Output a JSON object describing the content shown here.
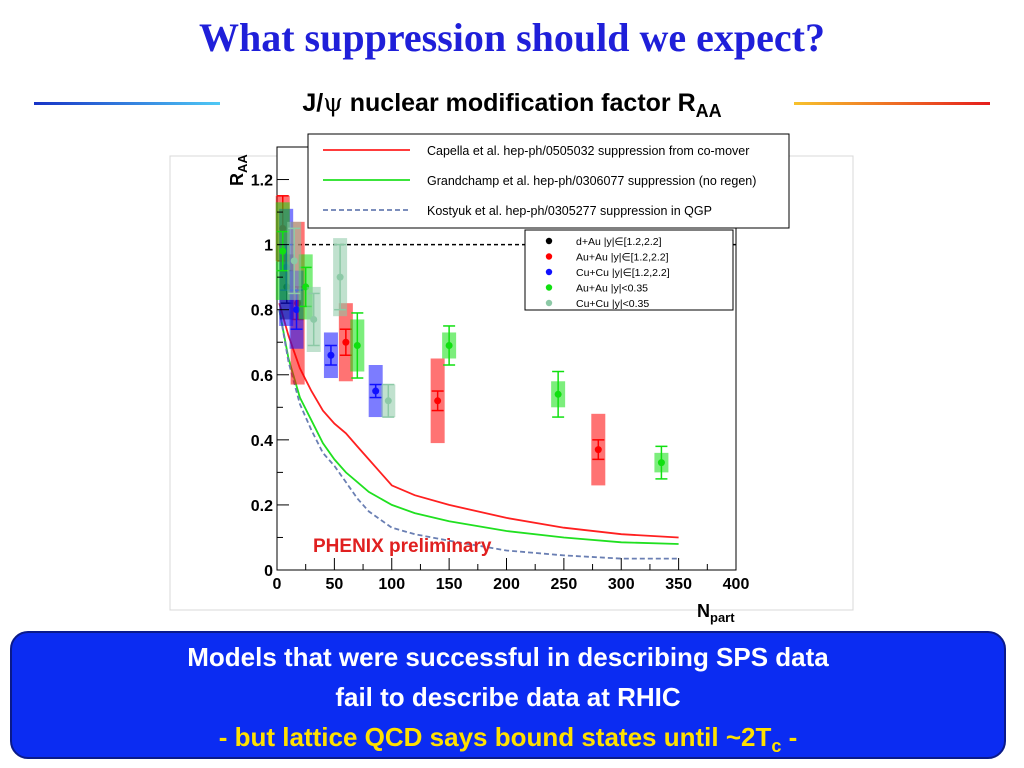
{
  "slide": {
    "title": "What suppression should we expect?",
    "chart_title_prefix": "J/",
    "chart_title_psi": "ψ",
    "chart_title_main": " nuclear modification factor R",
    "chart_title_sub": "AA",
    "conclusion_line1": "Models that were successful in describing SPS data",
    "conclusion_line2": "fail to describe data at RHIC",
    "conclusion_line3_pre": "- but lattice QCD says bound states until ~2T",
    "conclusion_line3_sub": "c",
    "conclusion_line3_post": " -",
    "colors": {
      "title": "#1f1fd9",
      "box": "#0b2cf2",
      "note": "#ffe000"
    }
  },
  "chart_data": {
    "type": "scatter",
    "xlabel": "N",
    "xlabel_sub": "part",
    "ylabel": "R",
    "ylabel_sub": "AA",
    "xlim": [
      0,
      400
    ],
    "ylim": [
      0,
      1.3
    ],
    "xticks": [
      0,
      50,
      100,
      150,
      200,
      250,
      300,
      350,
      400
    ],
    "yticks": [
      0,
      0.2,
      0.4,
      0.6,
      0.8,
      1,
      1.2
    ],
    "ytick_labels": [
      "0",
      "0.2",
      "0.4",
      "0.6",
      "0.8",
      "1",
      "1.2"
    ],
    "reference_line": 1,
    "annotation": "PHENIX preliminary",
    "models": [
      {
        "name": "Capella et al. hep-ph/0505032 suppression from co-mover",
        "color": "#ff2020",
        "dash": "solid",
        "x": [
          2,
          10,
          20,
          30,
          40,
          50,
          60,
          70,
          80,
          100,
          120,
          150,
          200,
          250,
          300,
          350
        ],
        "y": [
          0.82,
          0.72,
          0.62,
          0.55,
          0.49,
          0.45,
          0.42,
          0.38,
          0.34,
          0.26,
          0.23,
          0.2,
          0.16,
          0.13,
          0.11,
          0.1
        ]
      },
      {
        "name": "Grandchamp et al. hep-ph/0306077 suppression (no regen)",
        "color": "#20e020",
        "dash": "solid",
        "x": [
          2,
          10,
          20,
          30,
          40,
          50,
          60,
          70,
          80,
          100,
          120,
          150,
          200,
          250,
          300,
          350
        ],
        "y": [
          0.8,
          0.65,
          0.53,
          0.46,
          0.39,
          0.34,
          0.3,
          0.27,
          0.24,
          0.2,
          0.175,
          0.15,
          0.12,
          0.1,
          0.085,
          0.08
        ]
      },
      {
        "name": "Kostyuk et al. hep-ph/0305277 suppression in QGP",
        "color": "#6a7fb3",
        "dash": "dashed",
        "x": [
          2,
          10,
          20,
          30,
          40,
          50,
          60,
          70,
          80,
          100,
          120,
          150,
          200,
          250,
          300,
          350
        ],
        "y": [
          0.8,
          0.64,
          0.51,
          0.43,
          0.36,
          0.32,
          0.27,
          0.22,
          0.18,
          0.13,
          0.11,
          0.09,
          0.06,
          0.045,
          0.035,
          0.035
        ]
      }
    ],
    "series": [
      {
        "name": "d+Au |y|∈[1.2,2.2]",
        "color": "#000000",
        "points": [
          {
            "x": 8.5,
            "y": 0.87,
            "err": 0.05,
            "sys": 0.1
          }
        ]
      },
      {
        "name": "Au+Au |y|∈[1.2,2.2]",
        "color": "#ff0000",
        "points": [
          {
            "x": 5,
            "y": 1.05,
            "err": 0.1,
            "sys": 0.1
          },
          {
            "x": 18,
            "y": 0.82,
            "err": 0.05,
            "sys": 0.25
          },
          {
            "x": 60,
            "y": 0.7,
            "err": 0.04,
            "sys": 0.12
          },
          {
            "x": 140,
            "y": 0.52,
            "err": 0.03,
            "sys": 0.13
          },
          {
            "x": 280,
            "y": 0.37,
            "err": 0.03,
            "sys": 0.11
          }
        ]
      },
      {
        "name": "Cu+Cu |y|∈[1.2,2.2]",
        "color": "#1010ff",
        "points": [
          {
            "x": 8,
            "y": 0.93,
            "err": 0.07,
            "sys": 0.18
          },
          {
            "x": 17,
            "y": 0.8,
            "err": 0.06,
            "sys": 0.12
          },
          {
            "x": 47,
            "y": 0.66,
            "err": 0.03,
            "sys": 0.07
          },
          {
            "x": 86,
            "y": 0.55,
            "err": 0.02,
            "sys": 0.08
          }
        ]
      },
      {
        "name": "Au+Au |y|<0.35",
        "color": "#10e010",
        "points": [
          {
            "x": 5,
            "y": 0.98,
            "err": 0.06,
            "sys": 0.15
          },
          {
            "x": 25,
            "y": 0.87,
            "err": 0.06,
            "sys": 0.1
          },
          {
            "x": 70,
            "y": 0.69,
            "err": 0.1,
            "sys": 0.08
          },
          {
            "x": 150,
            "y": 0.69,
            "err": 0.06,
            "sys": 0.04
          },
          {
            "x": 245,
            "y": 0.54,
            "err": 0.07,
            "sys": 0.04
          },
          {
            "x": 335,
            "y": 0.33,
            "err": 0.05,
            "sys": 0.03
          }
        ]
      },
      {
        "name": "Cu+Cu |y|<0.35",
        "color": "#8cc9a6",
        "points": [
          {
            "x": 15,
            "y": 0.95,
            "err": 0.1,
            "sys": 0.12
          },
          {
            "x": 32,
            "y": 0.77,
            "err": 0.08,
            "sys": 0.1
          },
          {
            "x": 55,
            "y": 0.9,
            "err": 0.1,
            "sys": 0.12
          },
          {
            "x": 97,
            "y": 0.52,
            "err": 0.05,
            "sys": 0.05
          }
        ]
      }
    ]
  }
}
